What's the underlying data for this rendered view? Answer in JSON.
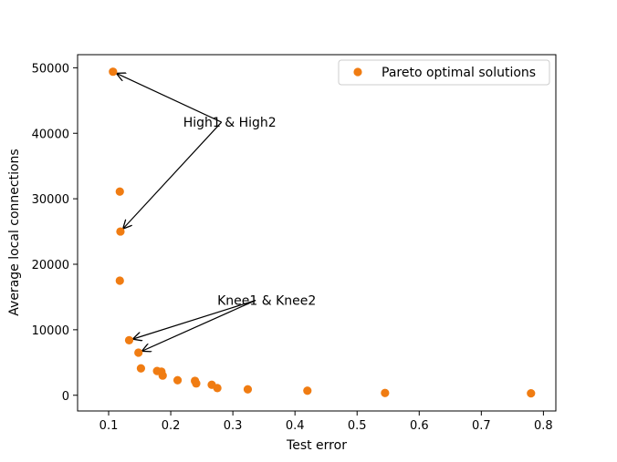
{
  "chart_data": {
    "type": "scatter",
    "xlabel": "Test error",
    "ylabel": "Average local connections",
    "xlim": [
      0.05,
      0.82
    ],
    "ylim": [
      -2400,
      52000
    ],
    "xticks": [
      "0.1",
      "0.2",
      "0.3",
      "0.4",
      "0.5",
      "0.6",
      "0.7",
      "0.8"
    ],
    "yticks": [
      "0",
      "10000",
      "20000",
      "30000",
      "40000",
      "50000"
    ],
    "grid": false,
    "legend": {
      "position": "top-right",
      "entries": [
        "Pareto optimal solutions"
      ]
    },
    "series": [
      {
        "name": "Pareto optimal solutions",
        "color": "#f07c12",
        "points": [
          {
            "x": 0.107,
            "y": 49400
          },
          {
            "x": 0.118,
            "y": 31100
          },
          {
            "x": 0.119,
            "y": 25000
          },
          {
            "x": 0.118,
            "y": 17500
          },
          {
            "x": 0.133,
            "y": 8400
          },
          {
            "x": 0.148,
            "y": 6500
          },
          {
            "x": 0.152,
            "y": 4100
          },
          {
            "x": 0.178,
            "y": 3700
          },
          {
            "x": 0.185,
            "y": 3600
          },
          {
            "x": 0.187,
            "y": 3000
          },
          {
            "x": 0.211,
            "y": 2300
          },
          {
            "x": 0.239,
            "y": 2200
          },
          {
            "x": 0.241,
            "y": 1800
          },
          {
            "x": 0.266,
            "y": 1600
          },
          {
            "x": 0.275,
            "y": 1100
          },
          {
            "x": 0.324,
            "y": 900
          },
          {
            "x": 0.42,
            "y": 700
          },
          {
            "x": 0.545,
            "y": 350
          },
          {
            "x": 0.78,
            "y": 300
          }
        ]
      }
    ],
    "annotations": [
      {
        "text": "High1 & High2",
        "targets": [
          [
            0.107,
            49400
          ],
          [
            0.119,
            25000
          ]
        ],
        "anchor_point": [
          0.22,
          41000
        ]
      },
      {
        "text": "Knee1 & Knee2",
        "targets": [
          [
            0.133,
            8400
          ],
          [
            0.148,
            6500
          ]
        ],
        "anchor_point": [
          0.275,
          13800
        ]
      }
    ]
  }
}
